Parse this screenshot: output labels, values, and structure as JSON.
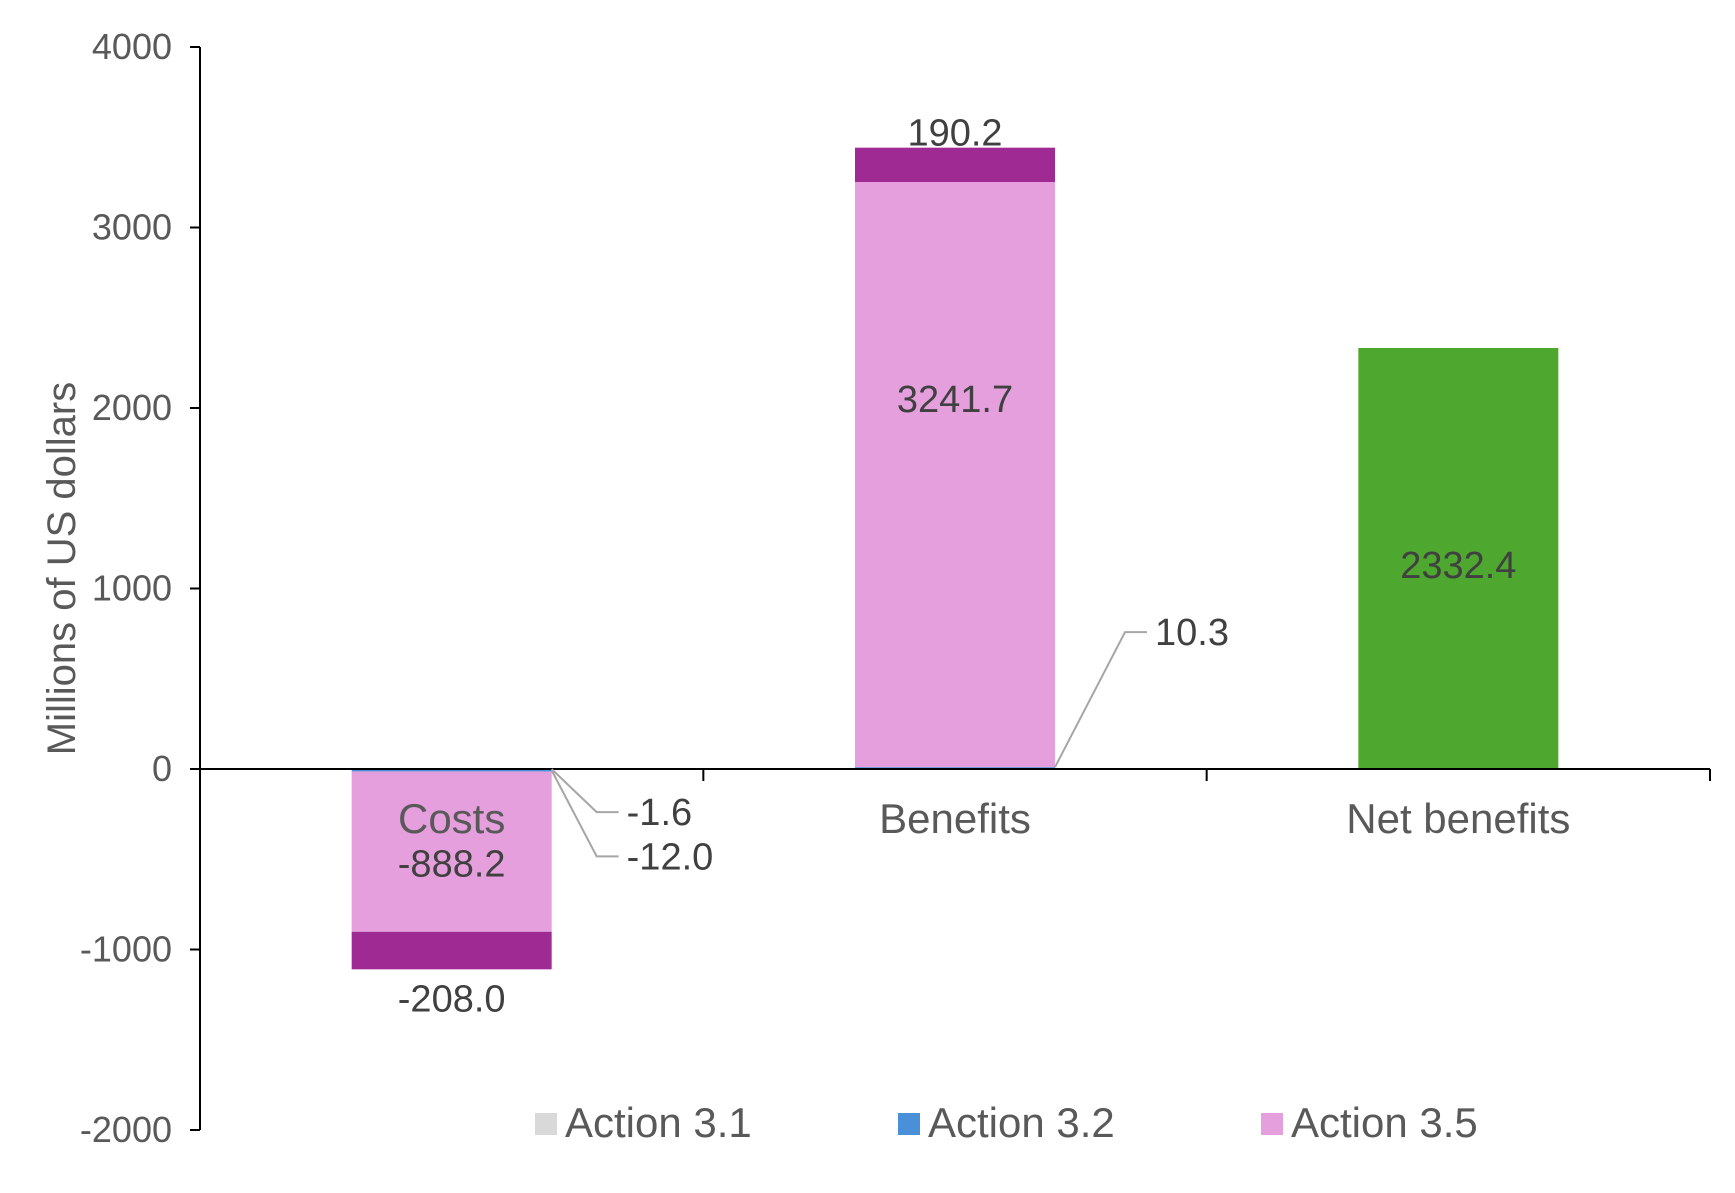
{
  "chart_data": {
    "type": "bar",
    "stacked": true,
    "title": "",
    "xlabel": "",
    "ylabel": "Millions of US dollars",
    "ylim": [
      -2000,
      4000
    ],
    "yticks": [
      4000,
      3000,
      2000,
      1000,
      0,
      -1000,
      -2000
    ],
    "categories": [
      "Costs",
      "Benefits",
      "Net benefits"
    ],
    "series": [
      {
        "name": "Action 3.1",
        "color": "#d9d9d9",
        "values": [
          -1.6,
          0,
          0
        ],
        "labels": [
          "-1.6",
          "",
          ""
        ]
      },
      {
        "name": "Action 3.2",
        "color": "#4a90d9",
        "values": [
          -12.0,
          10.3,
          0
        ],
        "labels": [
          "-12.0",
          "10.3",
          ""
        ]
      },
      {
        "name": "Action 3.5",
        "color": "#e49fdc",
        "values": [
          -888.2,
          3241.7,
          0
        ],
        "labels": [
          "-888.2",
          "3241.7",
          ""
        ]
      },
      {
        "name": "",
        "color": "#a02a93",
        "values": [
          -208.0,
          190.2,
          0
        ],
        "labels": [
          "-208.0",
          "190.2",
          ""
        ]
      },
      {
        "name": "",
        "color": "#4ea72e",
        "values": [
          0,
          0,
          2332.4
        ],
        "labels": [
          "",
          "",
          "2332.4"
        ]
      }
    ],
    "legend": {
      "placement": "bottom",
      "entries": [
        "Action 3.1",
        "Action 3.2",
        "Action 3.5"
      ]
    },
    "grid": false
  }
}
